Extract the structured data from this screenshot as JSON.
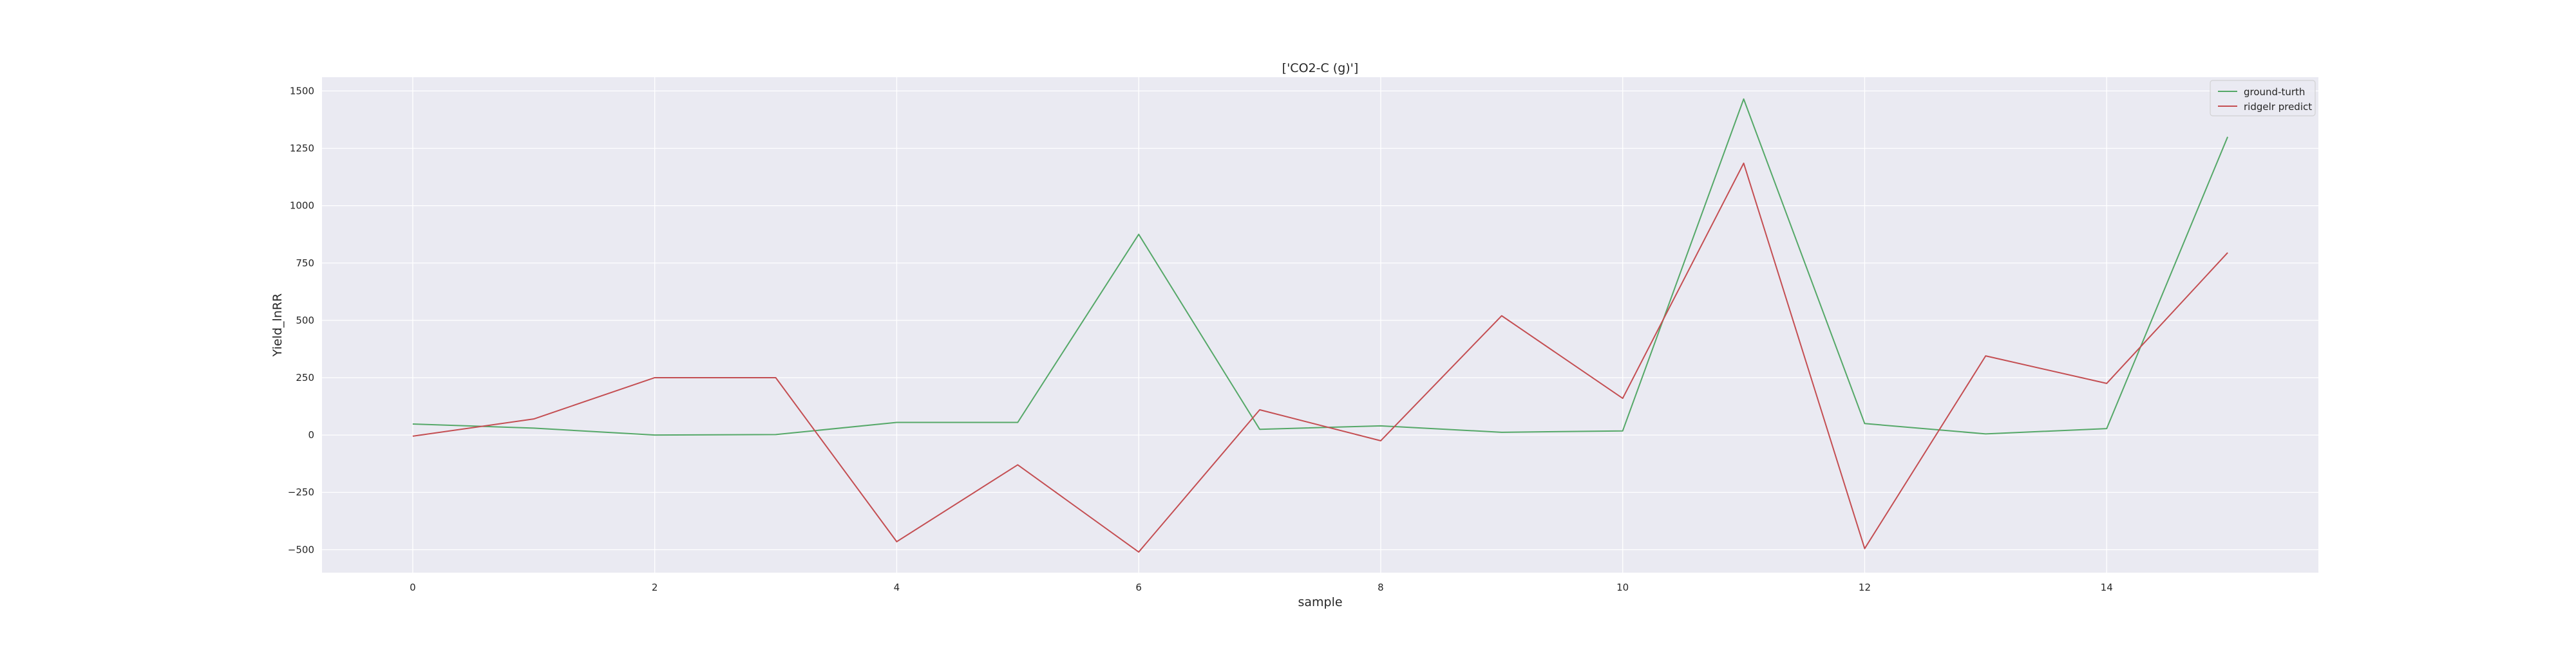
{
  "chart_data": {
    "type": "line",
    "title": "['CO2-C (g)']",
    "xlabel": "sample",
    "ylabel": "Yield_lnRR",
    "xlim": [
      -0.75,
      15.75
    ],
    "ylim": [
      -600,
      1560
    ],
    "x_ticks": [
      0,
      2,
      4,
      6,
      8,
      10,
      12,
      14
    ],
    "y_ticks": [
      -500,
      -250,
      0,
      250,
      500,
      750,
      1000,
      1250,
      1500
    ],
    "y_tick_labels": [
      "−500",
      "−250",
      "0",
      "250",
      "500",
      "750",
      "1000",
      "1250",
      "1500"
    ],
    "grid": true,
    "legend_position": "top-right",
    "x": [
      0,
      1,
      2,
      3,
      4,
      5,
      6,
      7,
      8,
      9,
      10,
      11,
      12,
      13,
      14,
      15
    ],
    "series": [
      {
        "name": "ground-turth",
        "color": "#55a868",
        "values": [
          48,
          30,
          0,
          2,
          55,
          55,
          875,
          25,
          40,
          12,
          18,
          1465,
          50,
          5,
          28,
          1300
        ]
      },
      {
        "name": "ridgelr predict",
        "color": "#c44e52",
        "values": [
          -5,
          70,
          250,
          250,
          -465,
          -130,
          -510,
          110,
          -25,
          520,
          160,
          1185,
          -495,
          345,
          225,
          795
        ]
      }
    ]
  }
}
